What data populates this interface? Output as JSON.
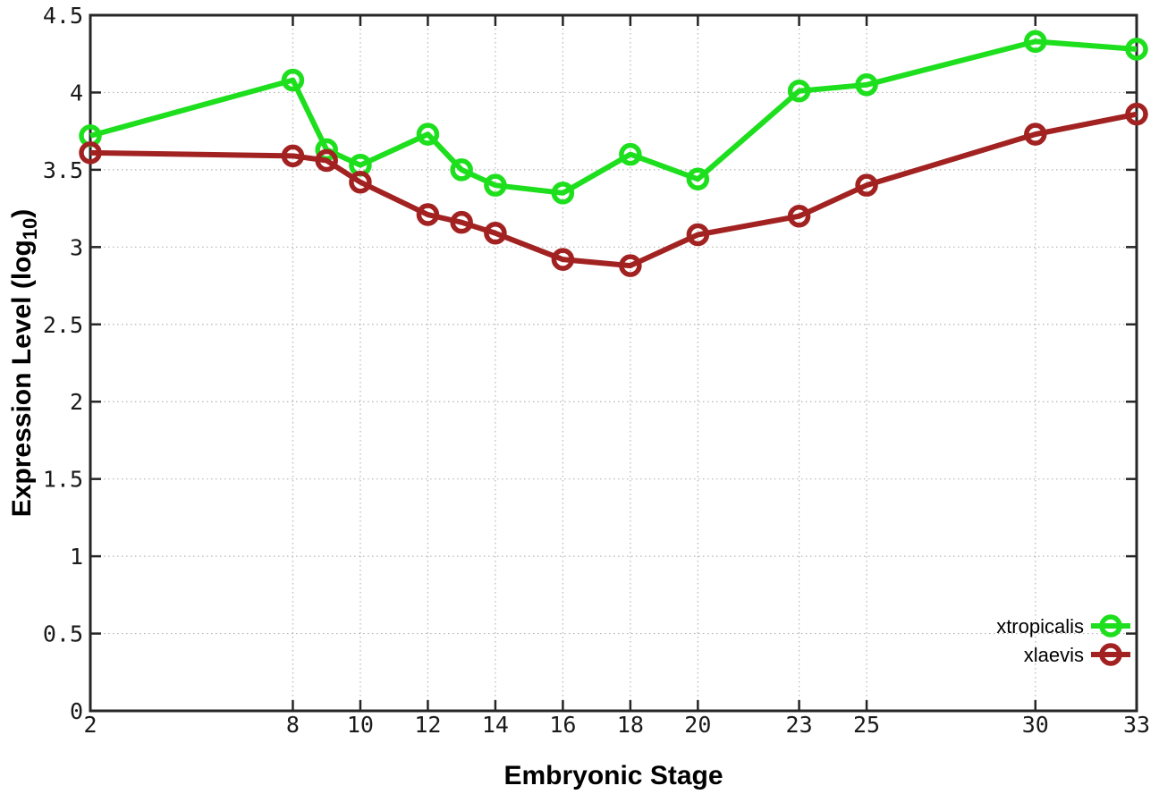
{
  "figure": {
    "background": "#ffffff"
  },
  "chart_data": {
    "type": "line",
    "title": "",
    "xlabel": "Embryonic Stage",
    "ylabel": "Expression Level (log10)",
    "ylabel_parts": {
      "main": "Expression Level (log",
      "sub": "10",
      "end": ")"
    },
    "x": [
      2,
      8,
      9,
      10,
      12,
      13,
      14,
      16,
      18,
      20,
      23,
      25,
      30,
      33
    ],
    "series": [
      {
        "name": "xtropicalis",
        "color": "#1ddf1d",
        "marker": "open-circle",
        "values": [
          3.72,
          4.08,
          3.63,
          3.53,
          3.73,
          3.5,
          3.4,
          3.35,
          3.6,
          3.44,
          4.01,
          4.05,
          4.33,
          4.28
        ]
      },
      {
        "name": "xlaevis",
        "color": "#a22222",
        "marker": "open-circle",
        "values": [
          3.61,
          3.59,
          3.56,
          3.42,
          3.21,
          3.16,
          3.09,
          2.92,
          2.88,
          3.08,
          3.2,
          3.4,
          3.73,
          3.86
        ]
      }
    ],
    "xlim": [
      2,
      33
    ],
    "ylim": [
      0,
      4.5
    ],
    "x_ticks": [
      2,
      8,
      10,
      12,
      14,
      16,
      18,
      20,
      23,
      25,
      30,
      33
    ],
    "x_tick_labels": [
      "2",
      "8",
      "10",
      "12",
      "14",
      "16",
      "18",
      "20",
      "23",
      "25",
      "30",
      "33"
    ],
    "y_ticks": [
      0,
      0.5,
      1,
      1.5,
      2,
      2.5,
      3,
      3.5,
      4,
      4.5
    ],
    "y_tick_labels": [
      "0",
      "0.5",
      "1",
      "1.5",
      "2",
      "2.5",
      "3",
      "3.5",
      "4",
      "4.5"
    ],
    "grid": true,
    "grid_style": "dotted",
    "legend_position": "bottom-right",
    "colors": {
      "grid": "#b4b4b4",
      "axis": "#262626",
      "background": "#ffffff",
      "text": "#000000"
    }
  }
}
